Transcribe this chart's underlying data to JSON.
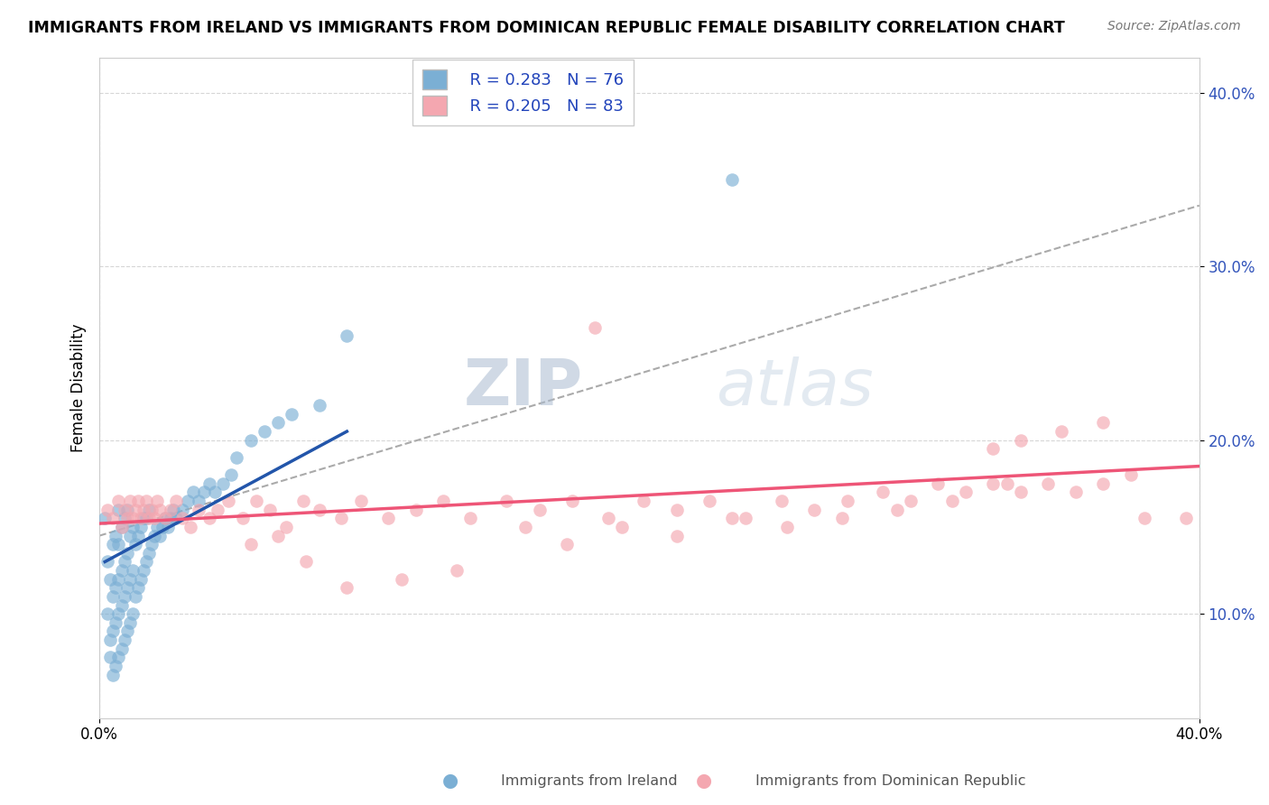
{
  "title": "IMMIGRANTS FROM IRELAND VS IMMIGRANTS FROM DOMINICAN REPUBLIC FEMALE DISABILITY CORRELATION CHART",
  "source": "Source: ZipAtlas.com",
  "ylabel": "Female Disability",
  "xlim": [
    0,
    0.4
  ],
  "ylim": [
    0.04,
    0.42
  ],
  "yticks": [
    0.1,
    0.2,
    0.3,
    0.4
  ],
  "ytick_labels": [
    "10.0%",
    "20.0%",
    "30.0%",
    "40.0%"
  ],
  "xtick_labels": [
    "0.0%",
    "40.0%"
  ],
  "legend_r1": "R = 0.283",
  "legend_n1": "N = 76",
  "legend_r2": "R = 0.205",
  "legend_n2": "N = 83",
  "color_ireland": "#7BAFD4",
  "color_dr": "#F4A7B0",
  "color_ireland_line": "#2255AA",
  "color_dr_line": "#EE5577",
  "color_dashed": "#AAAAAA",
  "watermark_zip": "ZIP",
  "watermark_atlas": "atlas",
  "ireland_x": [
    0.002,
    0.003,
    0.003,
    0.004,
    0.004,
    0.004,
    0.005,
    0.005,
    0.005,
    0.005,
    0.006,
    0.006,
    0.006,
    0.006,
    0.007,
    0.007,
    0.007,
    0.007,
    0.007,
    0.008,
    0.008,
    0.008,
    0.008,
    0.009,
    0.009,
    0.009,
    0.009,
    0.01,
    0.01,
    0.01,
    0.01,
    0.011,
    0.011,
    0.011,
    0.012,
    0.012,
    0.012,
    0.013,
    0.013,
    0.014,
    0.014,
    0.015,
    0.015,
    0.016,
    0.016,
    0.017,
    0.017,
    0.018,
    0.018,
    0.019,
    0.02,
    0.021,
    0.022,
    0.023,
    0.024,
    0.025,
    0.026,
    0.027,
    0.028,
    0.03,
    0.032,
    0.034,
    0.036,
    0.038,
    0.04,
    0.042,
    0.045,
    0.048,
    0.05,
    0.055,
    0.06,
    0.065,
    0.07,
    0.08,
    0.09,
    0.23
  ],
  "ireland_y": [
    0.155,
    0.1,
    0.13,
    0.075,
    0.085,
    0.12,
    0.065,
    0.09,
    0.11,
    0.14,
    0.07,
    0.095,
    0.115,
    0.145,
    0.075,
    0.1,
    0.12,
    0.14,
    0.16,
    0.08,
    0.105,
    0.125,
    0.15,
    0.085,
    0.11,
    0.13,
    0.155,
    0.09,
    0.115,
    0.135,
    0.16,
    0.095,
    0.12,
    0.145,
    0.1,
    0.125,
    0.15,
    0.11,
    0.14,
    0.115,
    0.145,
    0.12,
    0.15,
    0.125,
    0.155,
    0.13,
    0.155,
    0.135,
    0.16,
    0.14,
    0.145,
    0.15,
    0.145,
    0.15,
    0.155,
    0.15,
    0.155,
    0.16,
    0.155,
    0.16,
    0.165,
    0.17,
    0.165,
    0.17,
    0.175,
    0.17,
    0.175,
    0.18,
    0.19,
    0.2,
    0.205,
    0.21,
    0.215,
    0.22,
    0.26,
    0.35
  ],
  "dr_x": [
    0.003,
    0.005,
    0.007,
    0.008,
    0.009,
    0.01,
    0.011,
    0.012,
    0.013,
    0.014,
    0.015,
    0.016,
    0.017,
    0.018,
    0.019,
    0.02,
    0.021,
    0.022,
    0.024,
    0.026,
    0.028,
    0.03,
    0.033,
    0.036,
    0.04,
    0.043,
    0.047,
    0.052,
    0.057,
    0.062,
    0.068,
    0.074,
    0.08,
    0.088,
    0.095,
    0.105,
    0.115,
    0.125,
    0.135,
    0.148,
    0.16,
    0.172,
    0.185,
    0.198,
    0.21,
    0.222,
    0.235,
    0.248,
    0.26,
    0.272,
    0.285,
    0.295,
    0.305,
    0.315,
    0.325,
    0.335,
    0.345,
    0.355,
    0.365,
    0.375,
    0.325,
    0.335,
    0.35,
    0.365,
    0.055,
    0.065,
    0.075,
    0.09,
    0.11,
    0.13,
    0.155,
    0.17,
    0.19,
    0.21,
    0.23,
    0.25,
    0.27,
    0.29,
    0.31,
    0.33,
    0.18,
    0.38,
    0.395
  ],
  "dr_y": [
    0.16,
    0.155,
    0.165,
    0.15,
    0.16,
    0.155,
    0.165,
    0.155,
    0.16,
    0.165,
    0.155,
    0.16,
    0.165,
    0.155,
    0.16,
    0.155,
    0.165,
    0.16,
    0.155,
    0.16,
    0.165,
    0.155,
    0.15,
    0.16,
    0.155,
    0.16,
    0.165,
    0.155,
    0.165,
    0.16,
    0.15,
    0.165,
    0.16,
    0.155,
    0.165,
    0.155,
    0.16,
    0.165,
    0.155,
    0.165,
    0.16,
    0.165,
    0.155,
    0.165,
    0.16,
    0.165,
    0.155,
    0.165,
    0.16,
    0.165,
    0.17,
    0.165,
    0.175,
    0.17,
    0.175,
    0.17,
    0.175,
    0.17,
    0.175,
    0.18,
    0.195,
    0.2,
    0.205,
    0.21,
    0.14,
    0.145,
    0.13,
    0.115,
    0.12,
    0.125,
    0.15,
    0.14,
    0.15,
    0.145,
    0.155,
    0.15,
    0.155,
    0.16,
    0.165,
    0.175,
    0.265,
    0.155,
    0.155
  ],
  "ireland_line_x": [
    0.002,
    0.09
  ],
  "ireland_line_y": [
    0.13,
    0.205
  ],
  "dr_line_x": [
    0.0,
    0.4
  ],
  "dr_line_y": [
    0.152,
    0.185
  ],
  "dashed_line_x": [
    0.0,
    0.4
  ],
  "dashed_line_y": [
    0.145,
    0.335
  ]
}
